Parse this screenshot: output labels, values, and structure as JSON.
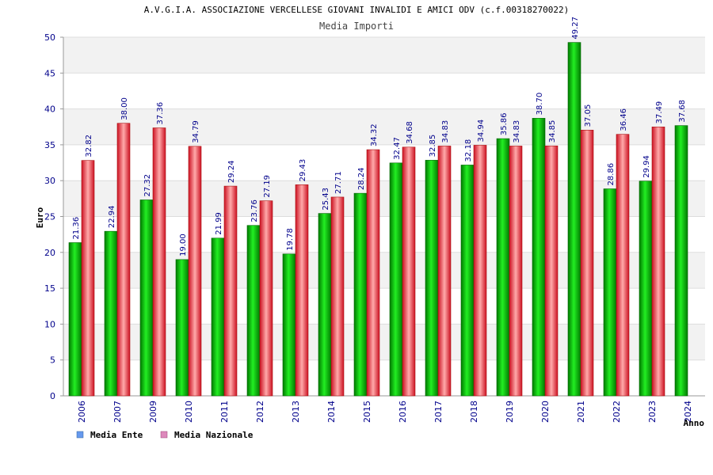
{
  "chart_data": {
    "type": "bar",
    "title": "A.V.G.I.A. ASSOCIAZIONE VERCELLESE GIOVANI INVALIDI E AMICI ODV (c.f.00318270022)",
    "subtitle": "Media Importi",
    "xlabel": "Anno",
    "ylabel": "Euro",
    "ylim": [
      0,
      50
    ],
    "yticks": [
      "0",
      "5",
      "10",
      "15",
      "20",
      "25",
      "30",
      "35",
      "40",
      "45",
      "50"
    ],
    "grid": true,
    "legend_position": "bottom-left",
    "categories": [
      "2006",
      "2007",
      "2009",
      "2010",
      "2011",
      "2012",
      "2013",
      "2014",
      "2015",
      "2016",
      "2017",
      "2018",
      "2019",
      "2020",
      "2021",
      "2022",
      "2023",
      "2024"
    ],
    "series": [
      {
        "name": "Media Ente",
        "color": "#00cc00",
        "legend_color": "#6699ee",
        "values": [
          21.36,
          22.94,
          27.32,
          19.0,
          21.99,
          23.76,
          19.78,
          25.43,
          28.24,
          32.47,
          32.85,
          32.18,
          35.86,
          38.7,
          49.27,
          28.86,
          29.94,
          37.68
        ],
        "labels": [
          "21.36",
          "22.94",
          "27.32",
          "19.00",
          "21.99",
          "23.76",
          "19.78",
          "25.43",
          "28.24",
          "32.47",
          "32.85",
          "32.18",
          "35.86",
          "38.70",
          "49.27",
          "28.86",
          "29.94",
          "37.68"
        ]
      },
      {
        "name": "Media Nazionale",
        "color": "#ee2222",
        "legend_color": "#dd88bb",
        "values": [
          32.82,
          38.0,
          37.36,
          34.79,
          29.24,
          27.19,
          29.43,
          27.71,
          34.32,
          34.68,
          34.83,
          34.94,
          34.83,
          34.85,
          37.05,
          36.46,
          37.49,
          null
        ],
        "labels": [
          "32.82",
          "38.00",
          "37.36",
          "34.79",
          "29.24",
          "27.19",
          "29.43",
          "27.71",
          "34.32",
          "34.68",
          "34.83",
          "34.94",
          "34.83",
          "34.85",
          "37.05",
          "36.46",
          "37.49",
          null
        ]
      }
    ]
  }
}
